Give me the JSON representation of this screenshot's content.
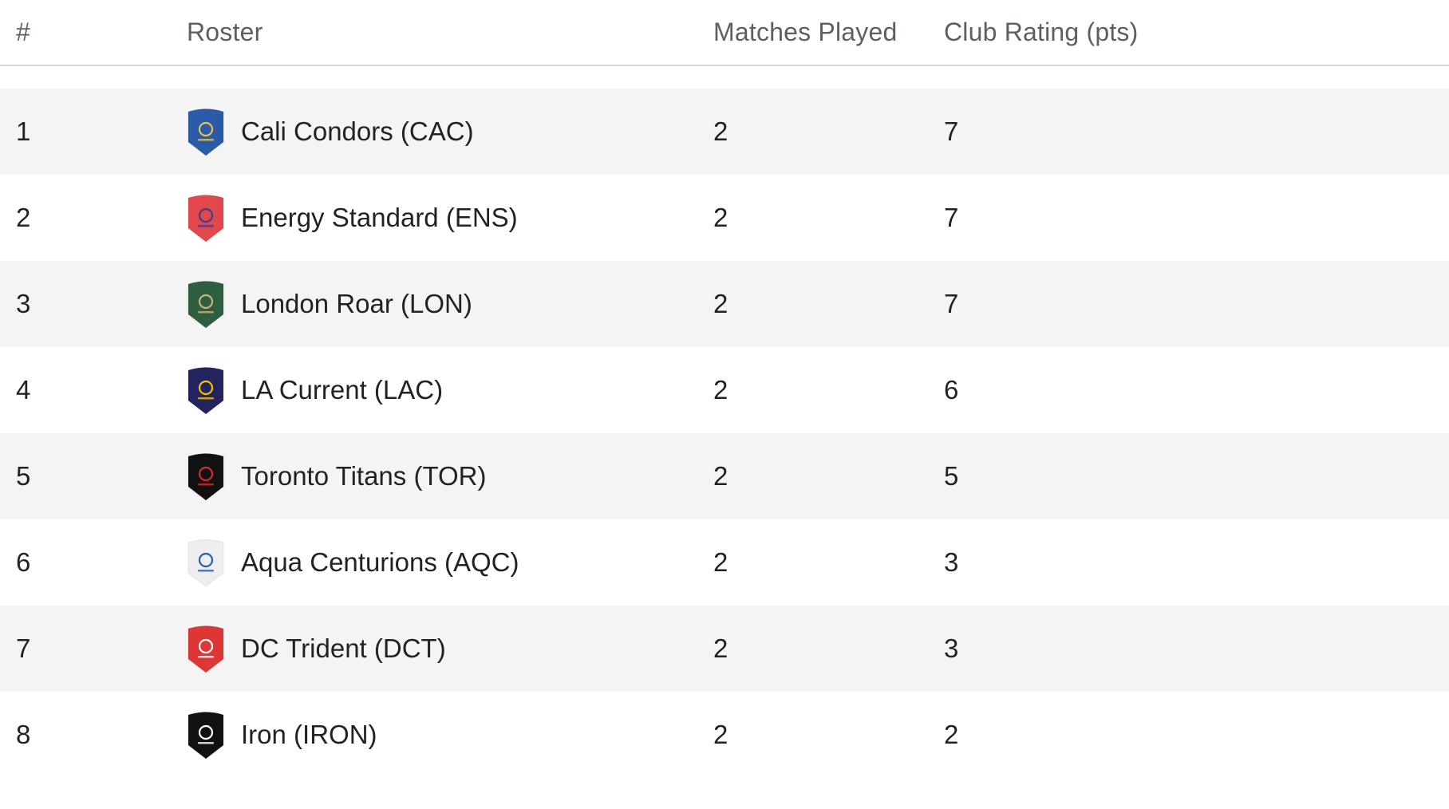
{
  "header": {
    "rank": "#",
    "roster": "Roster",
    "matches_played": "Matches Played",
    "club_rating": "Club Rating (pts)"
  },
  "rows": [
    {
      "rank": "1",
      "team": "Cali Condors (CAC)",
      "matches": "2",
      "rating": "7",
      "logo_icon": "cali-condors-logo",
      "logo_color": "#2a5aa8",
      "logo_mark": "#e8c24a"
    },
    {
      "rank": "2",
      "team": "Energy Standard (ENS)",
      "matches": "2",
      "rating": "7",
      "logo_icon": "energy-standard-logo",
      "logo_color": "#e2474c",
      "logo_mark": "#3b3f8f"
    },
    {
      "rank": "3",
      "team": "London Roar (LON)",
      "matches": "2",
      "rating": "7",
      "logo_icon": "london-roar-logo",
      "logo_color": "#2d5e3e",
      "logo_mark": "#c9b27a"
    },
    {
      "rank": "4",
      "team": "LA Current (LAC)",
      "matches": "2",
      "rating": "6",
      "logo_icon": "la-current-logo",
      "logo_color": "#23245e",
      "logo_mark": "#f2c200"
    },
    {
      "rank": "5",
      "team": "Toronto Titans (TOR)",
      "matches": "2",
      "rating": "5",
      "logo_icon": "toronto-titans-logo",
      "logo_color": "#111111",
      "logo_mark": "#d62c2c"
    },
    {
      "rank": "6",
      "team": "Aqua Centurions (AQC)",
      "matches": "2",
      "rating": "3",
      "logo_icon": "aqua-centurions-logo",
      "logo_color": "#eeeeee",
      "logo_mark": "#2a5aa8"
    },
    {
      "rank": "7",
      "team": "DC Trident (DCT)",
      "matches": "2",
      "rating": "3",
      "logo_icon": "dc-trident-logo",
      "logo_color": "#de3535",
      "logo_mark": "#ffffff"
    },
    {
      "rank": "8",
      "team": "Iron (IRON)",
      "matches": "2",
      "rating": "2",
      "logo_icon": "iron-logo",
      "logo_color": "#111111",
      "logo_mark": "#ffffff"
    }
  ]
}
